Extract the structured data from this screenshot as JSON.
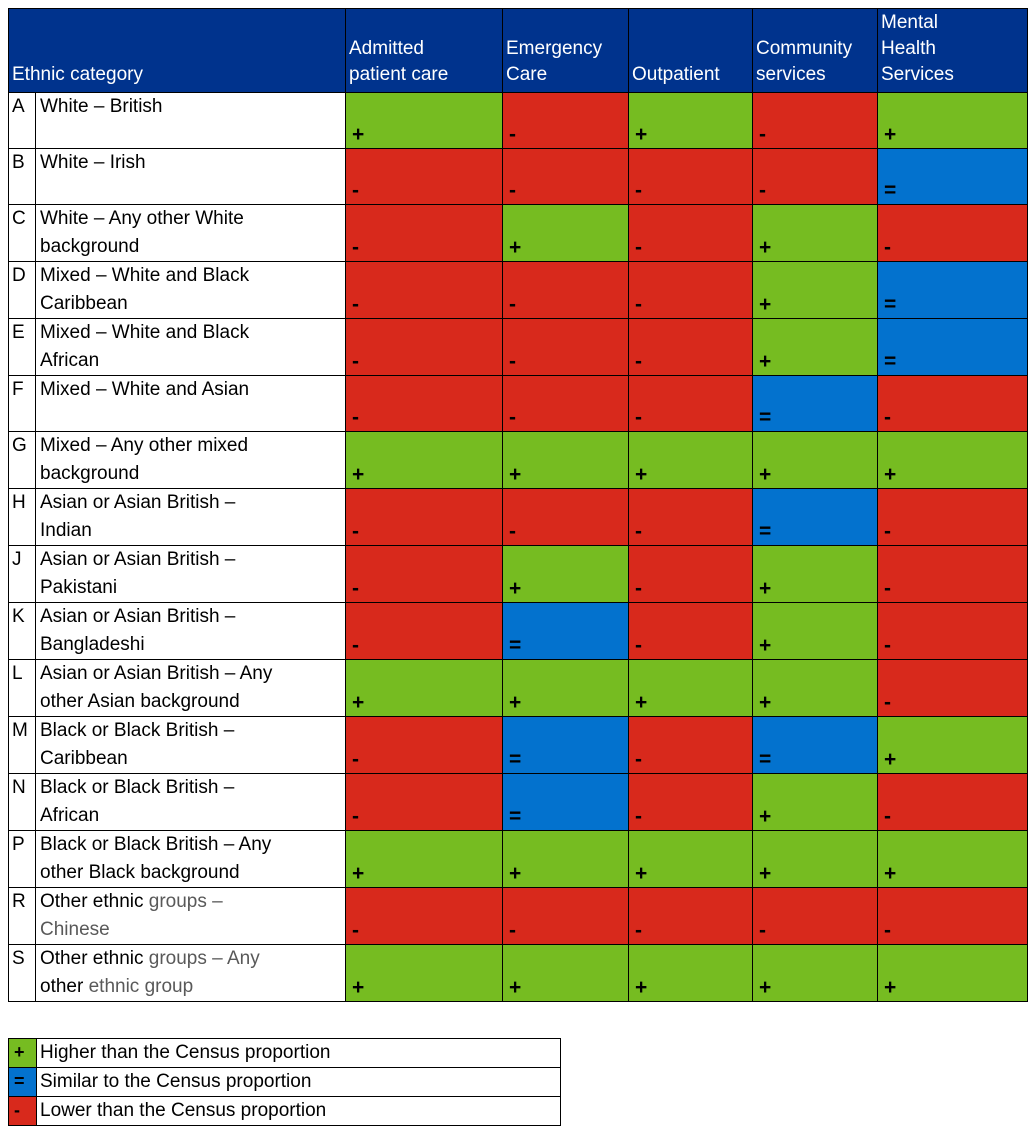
{
  "table": {
    "columns": [
      "Ethnic category",
      "Admitted\npatient care",
      "Emergency\nCare",
      "Outpatient",
      "Community\nservices",
      "Mental\nHealth\nServices"
    ],
    "rows": [
      {
        "code": "A",
        "label_parts": [
          {
            "text": "White – British"
          }
        ],
        "values": [
          "+",
          "-",
          "+",
          "-",
          "+"
        ]
      },
      {
        "code": "B",
        "label_parts": [
          {
            "text": "White – Irish"
          }
        ],
        "values": [
          "-",
          "-",
          "-",
          "-",
          "="
        ]
      },
      {
        "code": "C",
        "label_parts": [
          {
            "text": "White – Any other White\nbackground"
          }
        ],
        "values": [
          "-",
          "+",
          "-",
          "+",
          "-"
        ]
      },
      {
        "code": "D",
        "label_parts": [
          {
            "text": "Mixed – White and Black\nCaribbean"
          }
        ],
        "values": [
          "-",
          "-",
          "-",
          "+",
          "="
        ]
      },
      {
        "code": "E",
        "label_parts": [
          {
            "text": "Mixed – White and Black\nAfrican"
          }
        ],
        "values": [
          "-",
          "-",
          "-",
          "+",
          "="
        ]
      },
      {
        "code": "F",
        "label_parts": [
          {
            "text": "Mixed – White and Asian"
          }
        ],
        "values": [
          "-",
          "-",
          "-",
          "=",
          "-"
        ]
      },
      {
        "code": "G",
        "label_parts": [
          {
            "text": "Mixed – Any other mixed\nbackground"
          }
        ],
        "values": [
          "+",
          "+",
          "+",
          "+",
          "+"
        ]
      },
      {
        "code": "H",
        "label_parts": [
          {
            "text": "Asian or Asian British –\nIndian"
          }
        ],
        "values": [
          "-",
          "-",
          "-",
          "=",
          "-"
        ]
      },
      {
        "code": "J",
        "label_parts": [
          {
            "text": "Asian or Asian British –\nPakistani"
          }
        ],
        "values": [
          "-",
          "+",
          "-",
          "+",
          "-"
        ]
      },
      {
        "code": "K",
        "label_parts": [
          {
            "text": "Asian or Asian British –\nBangladeshi"
          }
        ],
        "values": [
          "-",
          "=",
          "-",
          "+",
          "-"
        ]
      },
      {
        "code": "L",
        "label_parts": [
          {
            "text": "Asian or Asian British – Any\nother Asian background"
          }
        ],
        "values": [
          "+",
          "+",
          "+",
          "+",
          "-"
        ]
      },
      {
        "code": "M",
        "label_parts": [
          {
            "text": "Black or Black British –\nCaribbean"
          }
        ],
        "values": [
          "-",
          "=",
          "-",
          "=",
          "+"
        ]
      },
      {
        "code": "N",
        "label_parts": [
          {
            "text": "Black or Black British –\nAfrican"
          }
        ],
        "values": [
          "-",
          "=",
          "-",
          "+",
          "-"
        ]
      },
      {
        "code": "P",
        "label_parts": [
          {
            "text": "Black or Black British – Any\nother Black background"
          }
        ],
        "values": [
          "+",
          "+",
          "+",
          "+",
          "+"
        ]
      },
      {
        "code": "R",
        "label_parts": [
          {
            "text": "Other ethnic "
          },
          {
            "text": "groups –\nChinese",
            "muted": true
          }
        ],
        "values": [
          "-",
          "-",
          "-",
          "-",
          "-"
        ]
      },
      {
        "code": "S",
        "label_parts": [
          {
            "text": "Other ethnic "
          },
          {
            "text": "groups – Any\n",
            "muted": true
          },
          {
            "text": "other "
          },
          {
            "text": "ethnic group",
            "muted": true
          }
        ],
        "values": [
          "+",
          "+",
          "+",
          "+",
          "+"
        ]
      }
    ]
  },
  "legend": {
    "items": [
      {
        "symbol": "+",
        "status": "higher",
        "label": "Higher than the Census proportion"
      },
      {
        "symbol": "=",
        "status": "similar",
        "label": "Similar to the Census proportion"
      },
      {
        "symbol": "-",
        "status": "lower",
        "label": "Lower than the Census proportion"
      }
    ]
  },
  "colors": {
    "higher": "#76BC21",
    "similar": "#0372CE",
    "lower": "#D8291C",
    "header_bg": "#00338D",
    "header_text": "#FFFFFF",
    "muted_text": "#595959",
    "border": "#000000"
  }
}
